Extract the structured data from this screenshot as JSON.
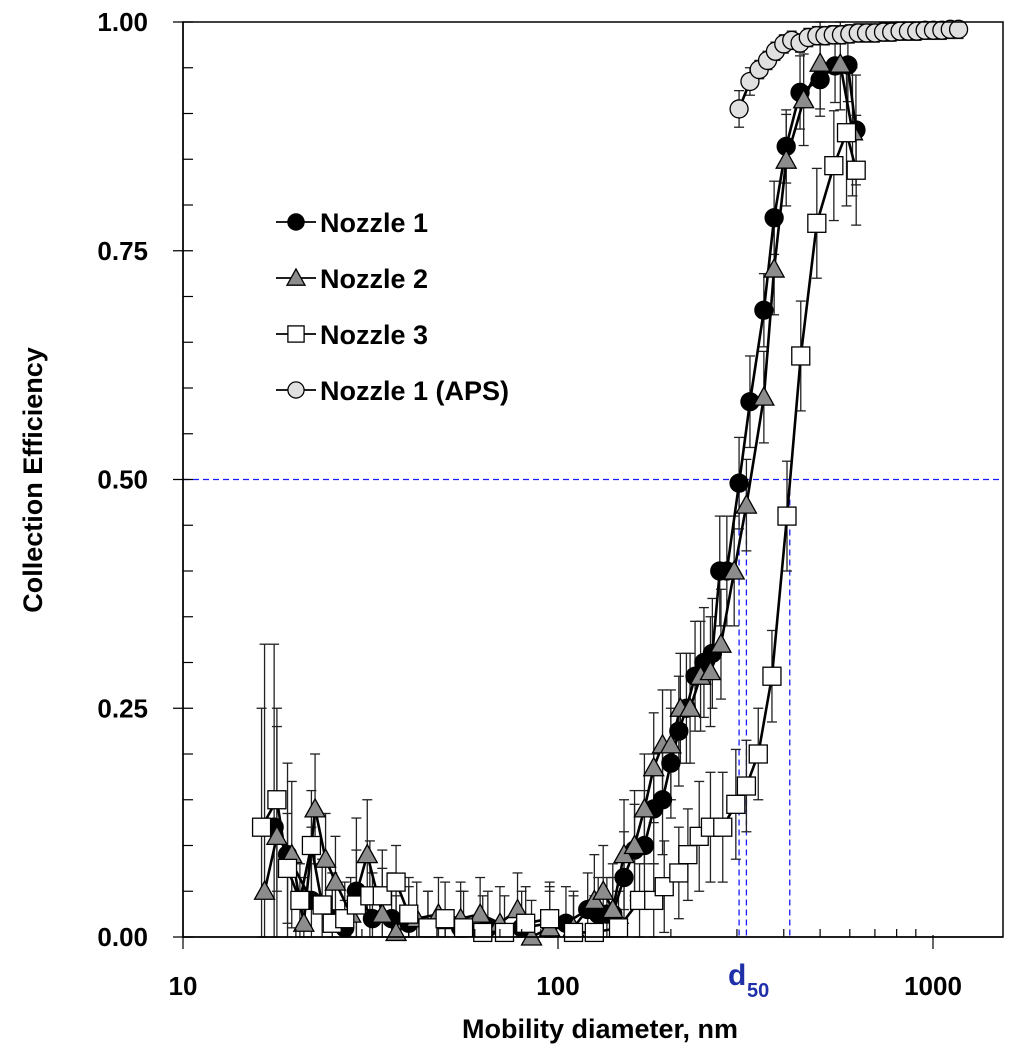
{
  "chart_data": {
    "type": "scatter",
    "xscale": "log",
    "xlabel": "Mobility diameter, nm",
    "ylabel": "Collection Efficiency",
    "xlim": [
      10,
      1600
    ],
    "ylim": [
      0,
      1.0
    ],
    "x_ticks": [
      {
        "value": 10,
        "label": "10"
      },
      {
        "value": 100,
        "label": "100"
      },
      {
        "value": 1000,
        "label": "1000"
      }
    ],
    "y_ticks": [
      {
        "value": 0.0,
        "label": "0.00"
      },
      {
        "value": 0.25,
        "label": "0.25"
      },
      {
        "value": 0.5,
        "label": "0.50"
      },
      {
        "value": 0.75,
        "label": "0.75"
      },
      {
        "value": 1.0,
        "label": "1.00"
      }
    ],
    "grid": false,
    "legend_position": "upper-left",
    "annotation": {
      "text": "d",
      "subscript": "50",
      "color": "#1f2fa8"
    },
    "reference_lines": {
      "horizontal_y": 0.5,
      "vertical_x": [
        304,
        318,
        415
      ],
      "color": "#1a1aff"
    },
    "series": [
      {
        "name": "Nozzle 1",
        "marker": "circle",
        "fill": "#000000",
        "x": [
          17.5,
          19,
          22,
          25,
          27,
          29,
          32,
          36,
          40,
          45,
          55,
          65,
          80,
          95,
          105,
          120,
          128,
          135,
          140,
          150,
          160,
          170,
          180,
          190,
          200,
          210,
          220,
          232,
          245,
          258,
          270,
          282,
          304,
          325,
          354,
          377,
          406,
          442,
          500,
          548,
          593,
          623
        ],
        "y": [
          0.12,
          0.09,
          0.04,
          0.02,
          0.01,
          0.05,
          0.02,
          0.02,
          0.015,
          0.01,
          0.01,
          0.01,
          0.01,
          0.015,
          0.015,
          0.03,
          0.025,
          0.025,
          0.025,
          0.065,
          0.095,
          0.1,
          0.14,
          0.15,
          0.19,
          0.225,
          0.25,
          0.285,
          0.3,
          0.31,
          0.4,
          0.4,
          0.496,
          0.585,
          0.685,
          0.786,
          0.864,
          0.923,
          0.937,
          0.952,
          0.953,
          0.882
        ],
        "yerr": [
          0.2,
          0.1,
          0.08,
          0.05,
          0.03,
          0.08,
          0.05,
          0.05,
          0.04,
          0.04,
          0.04,
          0.04,
          0.04,
          0.04,
          0.04,
          0.04,
          0.04,
          0.04,
          0.04,
          0.05,
          0.05,
          0.06,
          0.06,
          0.06,
          0.06,
          0.06,
          0.06,
          0.06,
          0.06,
          0.06,
          0.06,
          0.06,
          0.05,
          0.05,
          0.04,
          0.04,
          0.04,
          0.04,
          0.04,
          0.04,
          0.04,
          0.06
        ]
      },
      {
        "name": "Nozzle 2",
        "marker": "triangle",
        "fill": "#8c8c8c",
        "x": [
          16.5,
          17.8,
          19.5,
          21,
          22.5,
          24,
          25.5,
          28,
          31,
          34,
          37,
          42,
          48,
          55,
          62,
          70,
          78,
          85,
          95,
          110,
          125,
          132,
          140,
          150,
          160,
          170,
          180,
          190,
          200,
          212,
          225,
          240,
          255,
          272,
          295,
          318,
          354,
          377,
          406,
          452,
          500,
          566,
          610
        ],
        "y": [
          0.05,
          0.11,
          0.09,
          0.015,
          0.14,
          0.085,
          0.06,
          0.025,
          0.09,
          0.025,
          0.005,
          0.02,
          0.025,
          0.02,
          0.025,
          0.015,
          0.03,
          0.0,
          0.01,
          0.01,
          0.04,
          0.05,
          0.03,
          0.09,
          0.1,
          0.14,
          0.185,
          0.21,
          0.21,
          0.25,
          0.25,
          0.285,
          0.29,
          0.32,
          0.4,
          0.472,
          0.59,
          0.73,
          0.849,
          0.915,
          0.955,
          0.954,
          0.88
        ],
        "yerr": [
          0.27,
          0.12,
          0.08,
          0.05,
          0.06,
          0.05,
          0.05,
          0.04,
          0.06,
          0.05,
          0.04,
          0.04,
          0.04,
          0.04,
          0.04,
          0.04,
          0.04,
          0.04,
          0.04,
          0.04,
          0.05,
          0.05,
          0.05,
          0.06,
          0.06,
          0.06,
          0.06,
          0.06,
          0.06,
          0.06,
          0.06,
          0.06,
          0.06,
          0.06,
          0.06,
          0.05,
          0.05,
          0.05,
          0.05,
          0.05,
          0.05,
          0.05,
          0.07
        ]
      },
      {
        "name": "Nozzle 3",
        "marker": "square",
        "fill": "#ffffff",
        "x": [
          16.2,
          17.8,
          19,
          20.5,
          22,
          23.5,
          25,
          27,
          29,
          31.5,
          34,
          37,
          40,
          45,
          50,
          56,
          63,
          72,
          82,
          95,
          110,
          125,
          145,
          165,
          180,
          192,
          210,
          222,
          238,
          255,
          275,
          298,
          318,
          342,
          372,
          408,
          444,
          490,
          544,
          588,
          624
        ],
        "y": [
          0.12,
          0.15,
          0.075,
          0.04,
          0.1,
          0.035,
          0.015,
          0.02,
          0.035,
          0.045,
          0.045,
          0.06,
          0.025,
          0.01,
          0.02,
          0.01,
          0.005,
          0.005,
          0.015,
          0.02,
          0.005,
          0.005,
          0.01,
          0.04,
          0.04,
          0.055,
          0.07,
          0.09,
          0.11,
          0.12,
          0.12,
          0.145,
          0.165,
          0.2,
          0.285,
          0.46,
          0.635,
          0.78,
          0.843,
          0.879,
          0.838
        ],
        "yerr": [
          0.13,
          0.1,
          0.06,
          0.04,
          0.06,
          0.05,
          0.04,
          0.04,
          0.06,
          0.06,
          0.05,
          0.04,
          0.04,
          0.04,
          0.04,
          0.04,
          0.04,
          0.04,
          0.04,
          0.04,
          0.04,
          0.04,
          0.04,
          0.04,
          0.04,
          0.05,
          0.05,
          0.05,
          0.06,
          0.06,
          0.06,
          0.06,
          0.05,
          0.05,
          0.05,
          0.06,
          0.06,
          0.06,
          0.06,
          0.08,
          0.06
        ]
      },
      {
        "name": "Nozzle 1 (APS)",
        "marker": "circle",
        "fill": "#e0e0e0",
        "x": [
          304,
          325,
          344,
          362,
          380,
          400,
          420,
          442,
          465,
          490,
          515,
          542,
          570,
          600,
          632,
          665,
          700,
          738,
          776,
          817,
          860,
          905,
          953,
          1003,
          1056,
          1112,
          1170
        ],
        "y": [
          0.905,
          0.935,
          0.948,
          0.958,
          0.968,
          0.976,
          0.98,
          0.977,
          0.983,
          0.985,
          0.985,
          0.986,
          0.986,
          0.987,
          0.988,
          0.988,
          0.988,
          0.989,
          0.989,
          0.99,
          0.99,
          0.99,
          0.991,
          0.991,
          0.991,
          0.992,
          0.992
        ],
        "yerr": [
          0.02,
          0.015,
          0.01,
          0.01,
          0.01,
          0.01,
          0.01,
          0.01,
          0.01,
          0.01,
          0.01,
          0.01,
          0.01,
          0.01,
          0.01,
          0.01,
          0.01,
          0.01,
          0.01,
          0.01,
          0.01,
          0.01,
          0.01,
          0.01,
          0.01,
          0.01,
          0.01
        ]
      }
    ]
  }
}
